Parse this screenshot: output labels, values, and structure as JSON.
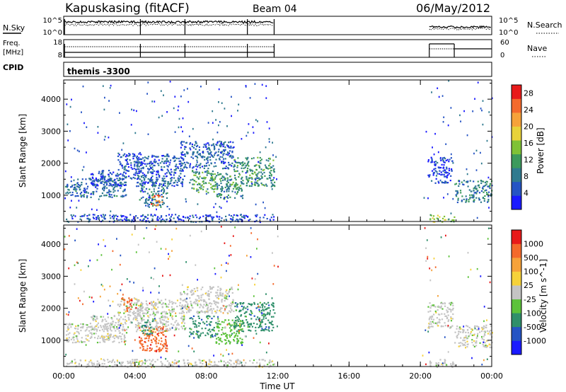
{
  "header": {
    "station": "Kapuskasing (fitACF)",
    "beam": "Beam 04",
    "date": "06/May/2012"
  },
  "nsky_panel": {
    "left_label": "N.Sky",
    "right_label": "N.Search",
    "ticks_left": [
      "10^5",
      "10^0"
    ],
    "ticks_right": [
      "10^5",
      "10^0"
    ]
  },
  "freq_panel": {
    "left_label_1": "Freq.",
    "left_label_2": "[MHz]",
    "right_label": "Nave",
    "ticks_left": [
      "18",
      "8"
    ],
    "ticks_right": [
      "60",
      "0"
    ]
  },
  "cpid_panel": {
    "label": "CPID",
    "value": "themis -3300"
  },
  "chart_data": [
    {
      "type": "heatmap",
      "ylabel": "Slant Range [km]",
      "xlabel": "Time UT",
      "x_ticks": [
        "00:00",
        "04:00",
        "08:00",
        "12:00",
        "16:00",
        "20:00",
        "00:00"
      ],
      "x_range_hours": [
        0,
        24
      ],
      "y_ticks": [
        1000,
        2000,
        3000,
        4000
      ],
      "ylim": [
        180,
        4600
      ],
      "colorbar": {
        "label": "Power [dB]",
        "ticks": [
          4,
          8,
          12,
          16,
          20,
          24,
          28
        ],
        "range": [
          0,
          30
        ],
        "colors": [
          "#1a1aff",
          "#2554c4",
          "#2f7a8f",
          "#3c9a5c",
          "#7fc236",
          "#e8d23a",
          "#f6a23a",
          "#f46a2c",
          "#e81a1a"
        ]
      },
      "regions": [
        {
          "t": [
            0.05,
            3.5
          ],
          "r": [
            950,
            1550
          ],
          "v": 7
        },
        {
          "t": [
            1.5,
            3.2
          ],
          "r": [
            1300,
            1800
          ],
          "v": 5
        },
        {
          "t": [
            3.0,
            4.4
          ],
          "r": [
            1550,
            2350
          ],
          "v": 5
        },
        {
          "t": [
            4.2,
            5.8
          ],
          "r": [
            650,
            1450
          ],
          "v": 8
        },
        {
          "t": [
            4.8,
            5.5
          ],
          "r": [
            700,
            1050
          ],
          "v": 24
        },
        {
          "t": [
            4.0,
            6.8
          ],
          "r": [
            1300,
            2300
          ],
          "v": 6
        },
        {
          "t": [
            6.5,
            9.5
          ],
          "r": [
            1850,
            2700
          ],
          "v": 6
        },
        {
          "t": [
            7.0,
            8.5
          ],
          "r": [
            1100,
            1800
          ],
          "v": 12
        },
        {
          "t": [
            8.5,
            10.0
          ],
          "r": [
            900,
            1700
          ],
          "v": 10
        },
        {
          "t": [
            9.5,
            11.8
          ],
          "r": [
            1300,
            2200
          ],
          "v": 11
        },
        {
          "t": [
            0.0,
            11.8
          ],
          "r": [
            180,
            420
          ],
          "v": 5
        },
        {
          "t": [
            20.5,
            21.9
          ],
          "r": [
            180,
            420
          ],
          "v": 14
        },
        {
          "t": [
            21.9,
            24
          ],
          "r": [
            800,
            1500
          ],
          "v": 9
        },
        {
          "t": [
            20.4,
            21.8
          ],
          "r": [
            1400,
            2200
          ],
          "v": 4
        }
      ]
    },
    {
      "type": "heatmap",
      "ylabel": "Slant Range [km]",
      "xlabel": "Time UT",
      "x_ticks": [
        "00:00",
        "04:00",
        "08:00",
        "12:00",
        "16:00",
        "20:00",
        "00:00"
      ],
      "x_range_hours": [
        0,
        24
      ],
      "y_ticks": [
        1000,
        2000,
        3000,
        4000
      ],
      "ylim": [
        180,
        4600
      ],
      "colorbar": {
        "label": "Velocity [m s^-1]",
        "ticks": [
          "1000",
          "500",
          "100",
          "25",
          "-25",
          "-100",
          "-500",
          "-1000"
        ],
        "colors": [
          "#1a1aff",
          "#2554c4",
          "#2f8f6a",
          "#5cc23a",
          "#c4c4c4",
          "#f6d23a",
          "#f6a23a",
          "#f46a2c",
          "#e81a1a"
        ]
      },
      "regions": [
        {
          "t": [
            0.05,
            3.5
          ],
          "r": [
            950,
            1550
          ],
          "c": 4
        },
        {
          "t": [
            1.5,
            3.2
          ],
          "r": [
            1300,
            1800
          ],
          "c": 4
        },
        {
          "t": [
            3.0,
            4.4
          ],
          "r": [
            1550,
            2350
          ],
          "c": 4
        },
        {
          "t": [
            3.2,
            3.8
          ],
          "r": [
            1900,
            2350
          ],
          "c": 7
        },
        {
          "t": [
            4.2,
            5.8
          ],
          "r": [
            650,
            1450
          ],
          "c": 7
        },
        {
          "t": [
            4.3,
            5.0
          ],
          "r": [
            1200,
            1700
          ],
          "c": 2
        },
        {
          "t": [
            4.0,
            6.8
          ],
          "r": [
            1300,
            2300
          ],
          "c": 4
        },
        {
          "t": [
            6.5,
            9.5
          ],
          "r": [
            1850,
            2700
          ],
          "c": 4
        },
        {
          "t": [
            7.0,
            8.5
          ],
          "r": [
            1100,
            1800
          ],
          "c": 2
        },
        {
          "t": [
            8.5,
            10.0
          ],
          "r": [
            900,
            1700
          ],
          "c": 3
        },
        {
          "t": [
            9.5,
            11.8
          ],
          "r": [
            1300,
            2200
          ],
          "c": 2
        },
        {
          "t": [
            0.0,
            11.8
          ],
          "r": [
            180,
            420
          ],
          "c": 4
        },
        {
          "t": [
            20.5,
            21.9
          ],
          "r": [
            180,
            420
          ],
          "c": 4
        },
        {
          "t": [
            21.9,
            24
          ],
          "r": [
            800,
            1500
          ],
          "c": 4
        },
        {
          "t": [
            20.4,
            21.8
          ],
          "r": [
            1400,
            2200
          ],
          "c": 4
        }
      ]
    }
  ]
}
